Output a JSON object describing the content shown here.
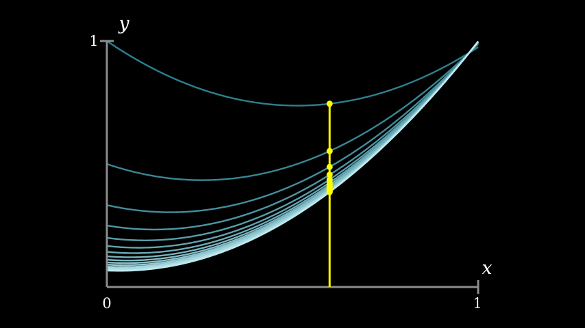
{
  "chart_data": {
    "type": "line",
    "title": "",
    "xlabel": "x",
    "ylabel": "y",
    "xlim": [
      0,
      1
    ],
    "ylim": [
      0,
      1
    ],
    "x_ticks": [
      "0",
      "1"
    ],
    "y_ticks": [
      "1"
    ],
    "grid": false,
    "marker_x": 0.6,
    "colors": {
      "axes": "#8c8c8c",
      "marker": "#ffff00",
      "curve_dark": "#2e7f8f",
      "curve_light": "#bfe9ef"
    },
    "series": [
      {
        "y_intercept": 1.0
      },
      {
        "y_intercept": 0.5
      },
      {
        "y_intercept": 0.333
      },
      {
        "y_intercept": 0.25
      },
      {
        "y_intercept": 0.2
      },
      {
        "y_intercept": 0.167
      },
      {
        "y_intercept": 0.143
      },
      {
        "y_intercept": 0.125
      },
      {
        "y_intercept": 0.111
      },
      {
        "y_intercept": 0.1
      },
      {
        "y_intercept": 0.091
      },
      {
        "y_intercept": 0.083
      },
      {
        "y_intercept": 0.077
      },
      {
        "y_intercept": 0.071
      },
      {
        "y_intercept": 0.067
      }
    ]
  }
}
